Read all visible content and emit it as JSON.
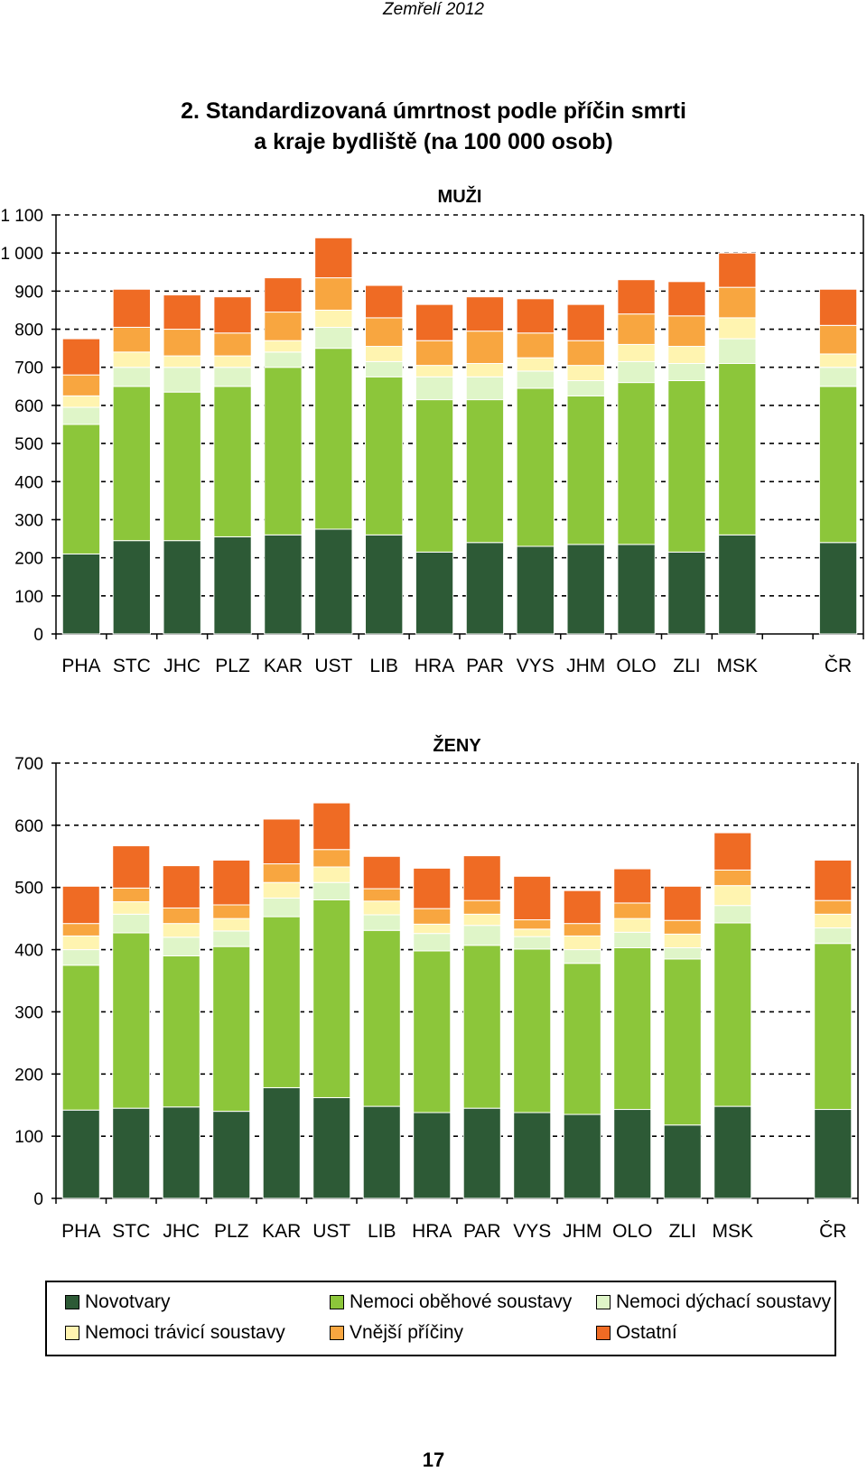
{
  "header": {
    "text": "Zemřelí 2012"
  },
  "title": {
    "line1": "2.  Standardizovaná úmrtnost podle příčin smrti",
    "line2": "a kraje bydliště (na 100 000 osob)"
  },
  "colors": {
    "Novotvary": "#2d5a36",
    "Nemoci oběhové soustavy": "#8cc63a",
    "Nemoci dýchací soustavy": "#dff5c8",
    "Nemoci trávicí soustavy": "#fff4b0",
    "Vnější příčiny": "#f8a640",
    "Ostatní": "#ef6b24"
  },
  "chart_data": [
    {
      "type": "bar",
      "stacked": true,
      "title": "MUŽI",
      "categories": [
        "PHA",
        "STC",
        "JHC",
        "PLZ",
        "KAR",
        "UST",
        "LIB",
        "HRA",
        "PAR",
        "VYS",
        "JHM",
        "OLO",
        "ZLI",
        "MSK",
        "ČR"
      ],
      "gap_before": "ČR",
      "ylim": [
        0,
        1100
      ],
      "yticks": [
        0,
        100,
        200,
        300,
        400,
        500,
        600,
        700,
        800,
        900,
        1000,
        1100
      ],
      "ytick_labels": [
        "0",
        "100",
        "200",
        "300",
        "400",
        "500",
        "600",
        "700",
        "800",
        "900",
        "1 000",
        "1 100"
      ],
      "grid": true,
      "series": [
        {
          "name": "Novotvary",
          "values": [
            210,
            245,
            245,
            255,
            260,
            275,
            260,
            215,
            240,
            230,
            235,
            235,
            215,
            260,
            240
          ]
        },
        {
          "name": "Nemoci oběhové soustavy",
          "values": [
            340,
            405,
            390,
            395,
            440,
            475,
            415,
            400,
            375,
            415,
            390,
            425,
            450,
            450,
            410
          ]
        },
        {
          "name": "Nemoci dýchací soustavy",
          "values": [
            45,
            50,
            65,
            50,
            40,
            55,
            40,
            60,
            60,
            45,
            40,
            55,
            45,
            65,
            50
          ]
        },
        {
          "name": "Nemoci trávicí soustavy",
          "values": [
            30,
            40,
            30,
            30,
            30,
            45,
            40,
            30,
            35,
            35,
            40,
            45,
            45,
            55,
            35
          ]
        },
        {
          "name": "Vnější příčiny",
          "values": [
            55,
            65,
            70,
            60,
            75,
            85,
            75,
            65,
            85,
            65,
            65,
            80,
            80,
            80,
            75
          ]
        },
        {
          "name": "Ostatní",
          "values": [
            95,
            100,
            90,
            95,
            90,
            105,
            85,
            95,
            90,
            90,
            95,
            90,
            90,
            90,
            95
          ]
        }
      ]
    },
    {
      "type": "bar",
      "stacked": true,
      "title": "ŽENY",
      "categories": [
        "PHA",
        "STC",
        "JHC",
        "PLZ",
        "KAR",
        "UST",
        "LIB",
        "HRA",
        "PAR",
        "VYS",
        "JHM",
        "OLO",
        "ZLI",
        "MSK",
        "ČR"
      ],
      "gap_before": "ČR",
      "ylim": [
        0,
        700
      ],
      "yticks": [
        0,
        100,
        200,
        300,
        400,
        500,
        600,
        700
      ],
      "ytick_labels": [
        "0",
        "100",
        "200",
        "300",
        "400",
        "500",
        "600",
        "700"
      ],
      "grid": true,
      "series": [
        {
          "name": "Novotvary",
          "values": [
            142,
            145,
            147,
            140,
            178,
            162,
            148,
            138,
            145,
            138,
            135,
            143,
            118,
            148,
            143
          ]
        },
        {
          "name": "Nemoci oběhové soustavy",
          "values": [
            233,
            282,
            243,
            265,
            275,
            318,
            283,
            260,
            262,
            263,
            243,
            260,
            267,
            295,
            267
          ]
        },
        {
          "name": "Nemoci dýchací soustavy",
          "values": [
            25,
            30,
            30,
            25,
            30,
            28,
            25,
            28,
            32,
            20,
            22,
            25,
            18,
            28,
            25
          ]
        },
        {
          "name": "Nemoci trávicí soustavy",
          "values": [
            22,
            20,
            22,
            20,
            25,
            25,
            22,
            15,
            18,
            12,
            22,
            22,
            22,
            32,
            22
          ]
        },
        {
          "name": "Vnější příčiny",
          "values": [
            20,
            22,
            25,
            22,
            30,
            28,
            20,
            25,
            22,
            15,
            20,
            25,
            22,
            25,
            22
          ]
        },
        {
          "name": "Ostatní",
          "values": [
            60,
            68,
            68,
            72,
            72,
            75,
            52,
            65,
            72,
            70,
            53,
            55,
            55,
            60,
            65
          ]
        }
      ]
    }
  ],
  "legend": {
    "items": [
      "Novotvary",
      "Nemoci oběhové soustavy",
      "Nemoci dýchací soustavy",
      "Nemoci trávicí soustavy",
      "Vnější příčiny",
      "Ostatní"
    ]
  },
  "page_number": "17"
}
